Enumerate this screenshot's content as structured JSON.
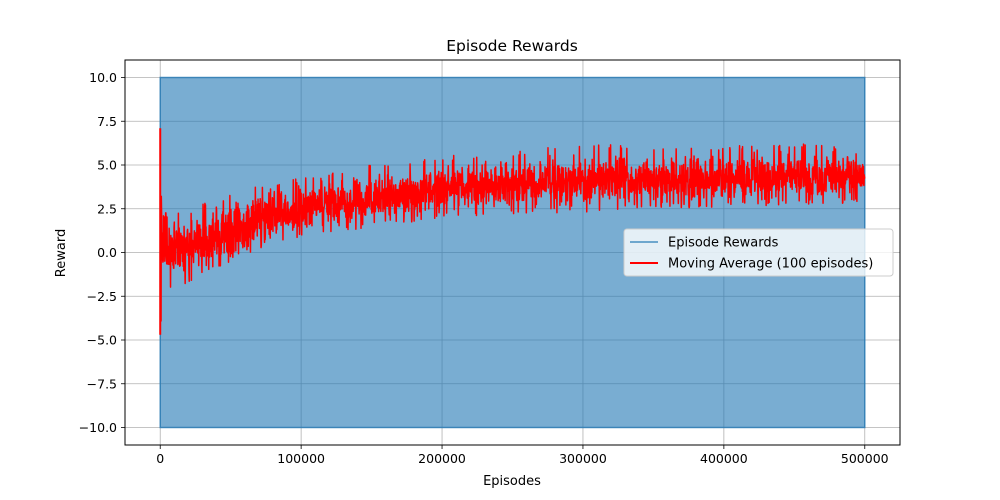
{
  "chart_data": {
    "type": "line",
    "title": "Episode Rewards",
    "xlabel": "Episodes",
    "ylabel": "Reward",
    "xlim": [
      -25000,
      525000
    ],
    "ylim": [
      -11,
      11
    ],
    "x_ticks": [
      0,
      100000,
      200000,
      300000,
      400000,
      500000
    ],
    "x_tick_labels": [
      "0",
      "100000",
      "200000",
      "300000",
      "400000",
      "500000"
    ],
    "y_ticks": [
      -10.0,
      -7.5,
      -5.0,
      -2.5,
      0.0,
      2.5,
      5.0,
      7.5,
      10.0
    ],
    "y_tick_labels": [
      "−10.0",
      "−7.5",
      "−5.0",
      "−2.5",
      "0.0",
      "2.5",
      "5.0",
      "7.5",
      "10.0"
    ],
    "grid": true,
    "legend_position": "center-right",
    "series": [
      {
        "name": "Episode Rewards",
        "color": "#1f77b4",
        "style": "dense-band",
        "x": [
          0,
          500000
        ],
        "y_min": -10.0,
        "y_max": 10.0
      },
      {
        "name": "Moving Average (100 episodes)",
        "color": "#ff0000",
        "style": "noisy-band",
        "x": [
          0,
          2000,
          10000,
          25000,
          50000,
          75000,
          100000,
          150000,
          200000,
          250000,
          300000,
          350000,
          400000,
          450000,
          500000
        ],
        "y_mean": [
          0.3,
          0.0,
          0.0,
          0.5,
          1.3,
          2.0,
          2.5,
          3.1,
          3.6,
          3.9,
          4.0,
          4.1,
          4.2,
          4.3,
          4.3
        ],
        "y_low": [
          -4.7,
          -2.3,
          -2.2,
          -1.6,
          -0.5,
          0.4,
          0.8,
          1.4,
          2.0,
          2.2,
          2.3,
          2.5,
          2.6,
          2.7,
          2.8
        ],
        "y_high": [
          7.1,
          2.3,
          2.2,
          2.7,
          3.3,
          4.0,
          4.3,
          5.0,
          5.5,
          5.8,
          6.2,
          6.1,
          6.1,
          6.2,
          6.2
        ]
      }
    ]
  }
}
